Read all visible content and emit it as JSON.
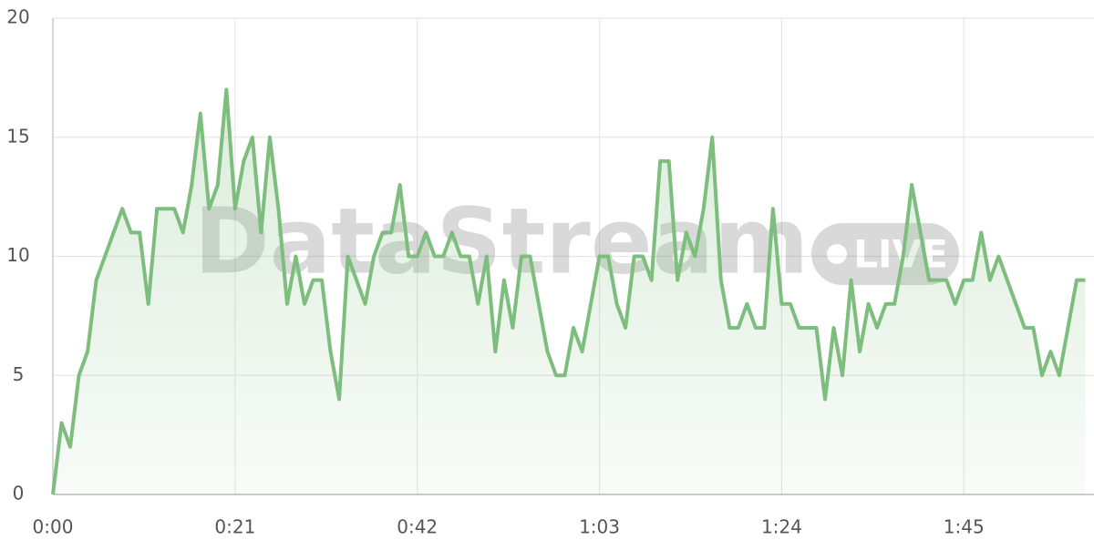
{
  "chart_data": {
    "type": "area-line",
    "watermark": "DataStream",
    "watermark_badge": "LIVE",
    "x": [
      0,
      1,
      2,
      3,
      4,
      5,
      6,
      7,
      8,
      9,
      10,
      11,
      12,
      13,
      14,
      15,
      16,
      17,
      18,
      19,
      20,
      21,
      22,
      23,
      24,
      25,
      26,
      27,
      28,
      29,
      30,
      31,
      32,
      33,
      34,
      35,
      36,
      37,
      38,
      39,
      40,
      41,
      42,
      43,
      44,
      45,
      46,
      47,
      48,
      49,
      50,
      51,
      52,
      53,
      54,
      55,
      56,
      57,
      58,
      59,
      60,
      61,
      62,
      63,
      64,
      65,
      66,
      67,
      68,
      69,
      70,
      71,
      72,
      73,
      74,
      75,
      76,
      77,
      78,
      79,
      80,
      81,
      82,
      83,
      84,
      85,
      86,
      87,
      88,
      89,
      90,
      91,
      92,
      93,
      94,
      95,
      96,
      97,
      98,
      99,
      100,
      101,
      102,
      103,
      104,
      105,
      106,
      107,
      108,
      109,
      110,
      111,
      112,
      113,
      114,
      115,
      116,
      117,
      118,
      119
    ],
    "series": [
      {
        "color": "#7dbd7d",
        "values": [
          0,
          3,
          2,
          5,
          6,
          9,
          10,
          11,
          12,
          11,
          11,
          8,
          12,
          12,
          12,
          11,
          13,
          16,
          12,
          13,
          17,
          12,
          14,
          15,
          11,
          15,
          12,
          8,
          10,
          8,
          9,
          9,
          6,
          4,
          10,
          9,
          8,
          10,
          11,
          11,
          13,
          10,
          10,
          11,
          10,
          10,
          11,
          10,
          10,
          8,
          10,
          6,
          9,
          7,
          10,
          10,
          8,
          6,
          5,
          5,
          7,
          6,
          8,
          10,
          10,
          8,
          7,
          10,
          10,
          9,
          14,
          14,
          9,
          11,
          10,
          12,
          15,
          9,
          7,
          7,
          8,
          7,
          7,
          12,
          8,
          8,
          7,
          7,
          7,
          4,
          7,
          5,
          9,
          6,
          8,
          7,
          8,
          8,
          10,
          13,
          11,
          9,
          9,
          9,
          8,
          9,
          9,
          11,
          9,
          10,
          9,
          8,
          7,
          7,
          5,
          6,
          5,
          7,
          9,
          9
        ]
      }
    ],
    "xlim": [
      0,
      120
    ],
    "ylim": [
      0,
      20
    ],
    "xticks": [
      {
        "value": 0,
        "label": "0:00"
      },
      {
        "value": 21,
        "label": "0:21"
      },
      {
        "value": 42,
        "label": "0:42"
      },
      {
        "value": 63,
        "label": "1:03"
      },
      {
        "value": 84,
        "label": "1:24"
      },
      {
        "value": 105,
        "label": "1:45"
      }
    ],
    "yticks": [
      0,
      5,
      10,
      15,
      20
    ],
    "grid": true
  }
}
